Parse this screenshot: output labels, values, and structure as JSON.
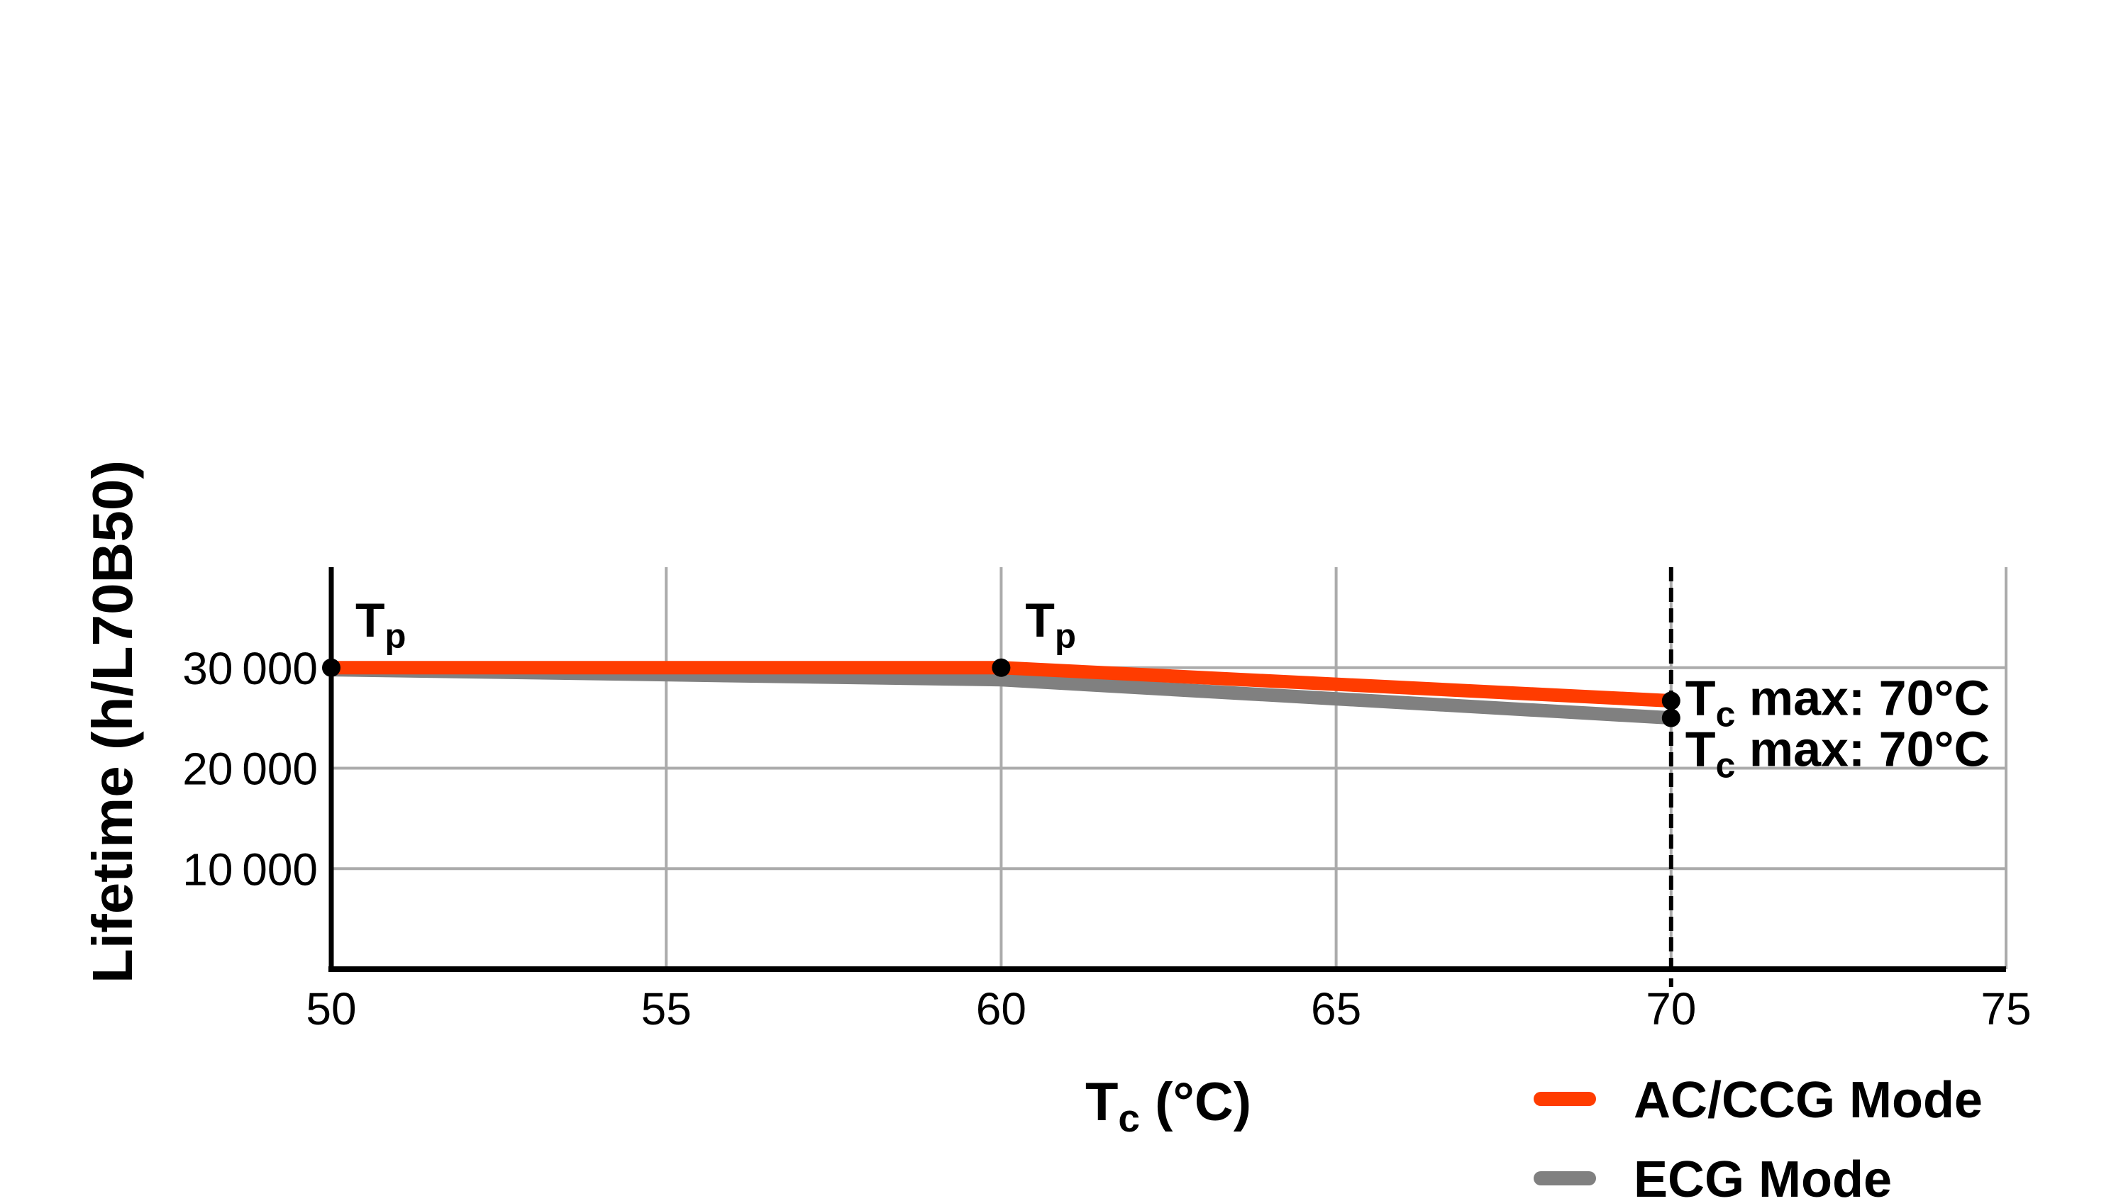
{
  "page": {
    "background": "#FFFFFF"
  },
  "chart_data": {
    "type": "line",
    "title": "",
    "xlabel": "Tc (°C)",
    "xlabel_rich": [
      {
        "t": "T"
      },
      {
        "t": "c",
        "sub": true
      },
      {
        "t": " (°C)"
      }
    ],
    "ylabel": "Lifetime (h/L70B50)",
    "xlim": [
      50,
      75
    ],
    "ylim": [
      0,
      40000
    ],
    "x_ticks": [
      {
        "value": 50,
        "label": "50"
      },
      {
        "value": 55,
        "label": "55"
      },
      {
        "value": 60,
        "label": "60"
      },
      {
        "value": 65,
        "label": "65"
      },
      {
        "value": 70,
        "label": "70"
      },
      {
        "value": 75,
        "label": "75"
      }
    ],
    "y_ticks": [
      {
        "value": 10000,
        "label": "10 000"
      },
      {
        "value": 20000,
        "label": "20 000"
      },
      {
        "value": 30000,
        "label": "30 000"
      }
    ],
    "x_gridlines": [
      55,
      60,
      65,
      70,
      75
    ],
    "y_gridlines": [
      10000,
      20000,
      30000
    ],
    "dashed_vline_x": 70,
    "grid_on": true,
    "grid_color": "#ABABAB",
    "axis_color": "#000000",
    "marker_color": "#000000",
    "x": [
      50,
      60,
      70
    ],
    "series": [
      {
        "name": "AC/CCG Mode",
        "values": [
          30000,
          30000,
          26700
        ],
        "color": "#FF3C00",
        "markers_at_x": [
          50,
          60,
          70
        ]
      },
      {
        "name": "ECG Mode",
        "values": [
          29800,
          28800,
          25000
        ],
        "color": "#808080",
        "markers_at_x": [
          70
        ]
      }
    ],
    "annotations": [
      {
        "text": "Tp",
        "rich": [
          {
            "t": "T"
          },
          {
            "t": "p",
            "sub": true
          }
        ],
        "series": 0,
        "at_x": 50,
        "placement": "above-right"
      },
      {
        "text": "Tp",
        "rich": [
          {
            "t": "T"
          },
          {
            "t": "p",
            "sub": true
          }
        ],
        "series": 0,
        "at_x": 60,
        "placement": "above-right"
      },
      {
        "text": "Tc max: 70°C",
        "rich": [
          {
            "t": "T"
          },
          {
            "t": "c",
            "sub": true
          },
          {
            "t": " max: 70°C"
          }
        ],
        "series": 0,
        "at_x": 70,
        "placement": "right"
      },
      {
        "text": "Tc max: 70°C",
        "rich": [
          {
            "t": "T"
          },
          {
            "t": "c",
            "sub": true
          },
          {
            "t": " max: 70°C"
          }
        ],
        "series": 1,
        "at_x": 70,
        "placement": "below-right"
      }
    ],
    "legend_position": "bottom-right",
    "legend": [
      {
        "label": "AC/CCG Mode",
        "color": "#FF3C00"
      },
      {
        "label": "ECG Mode",
        "color": "#808080"
      }
    ]
  }
}
